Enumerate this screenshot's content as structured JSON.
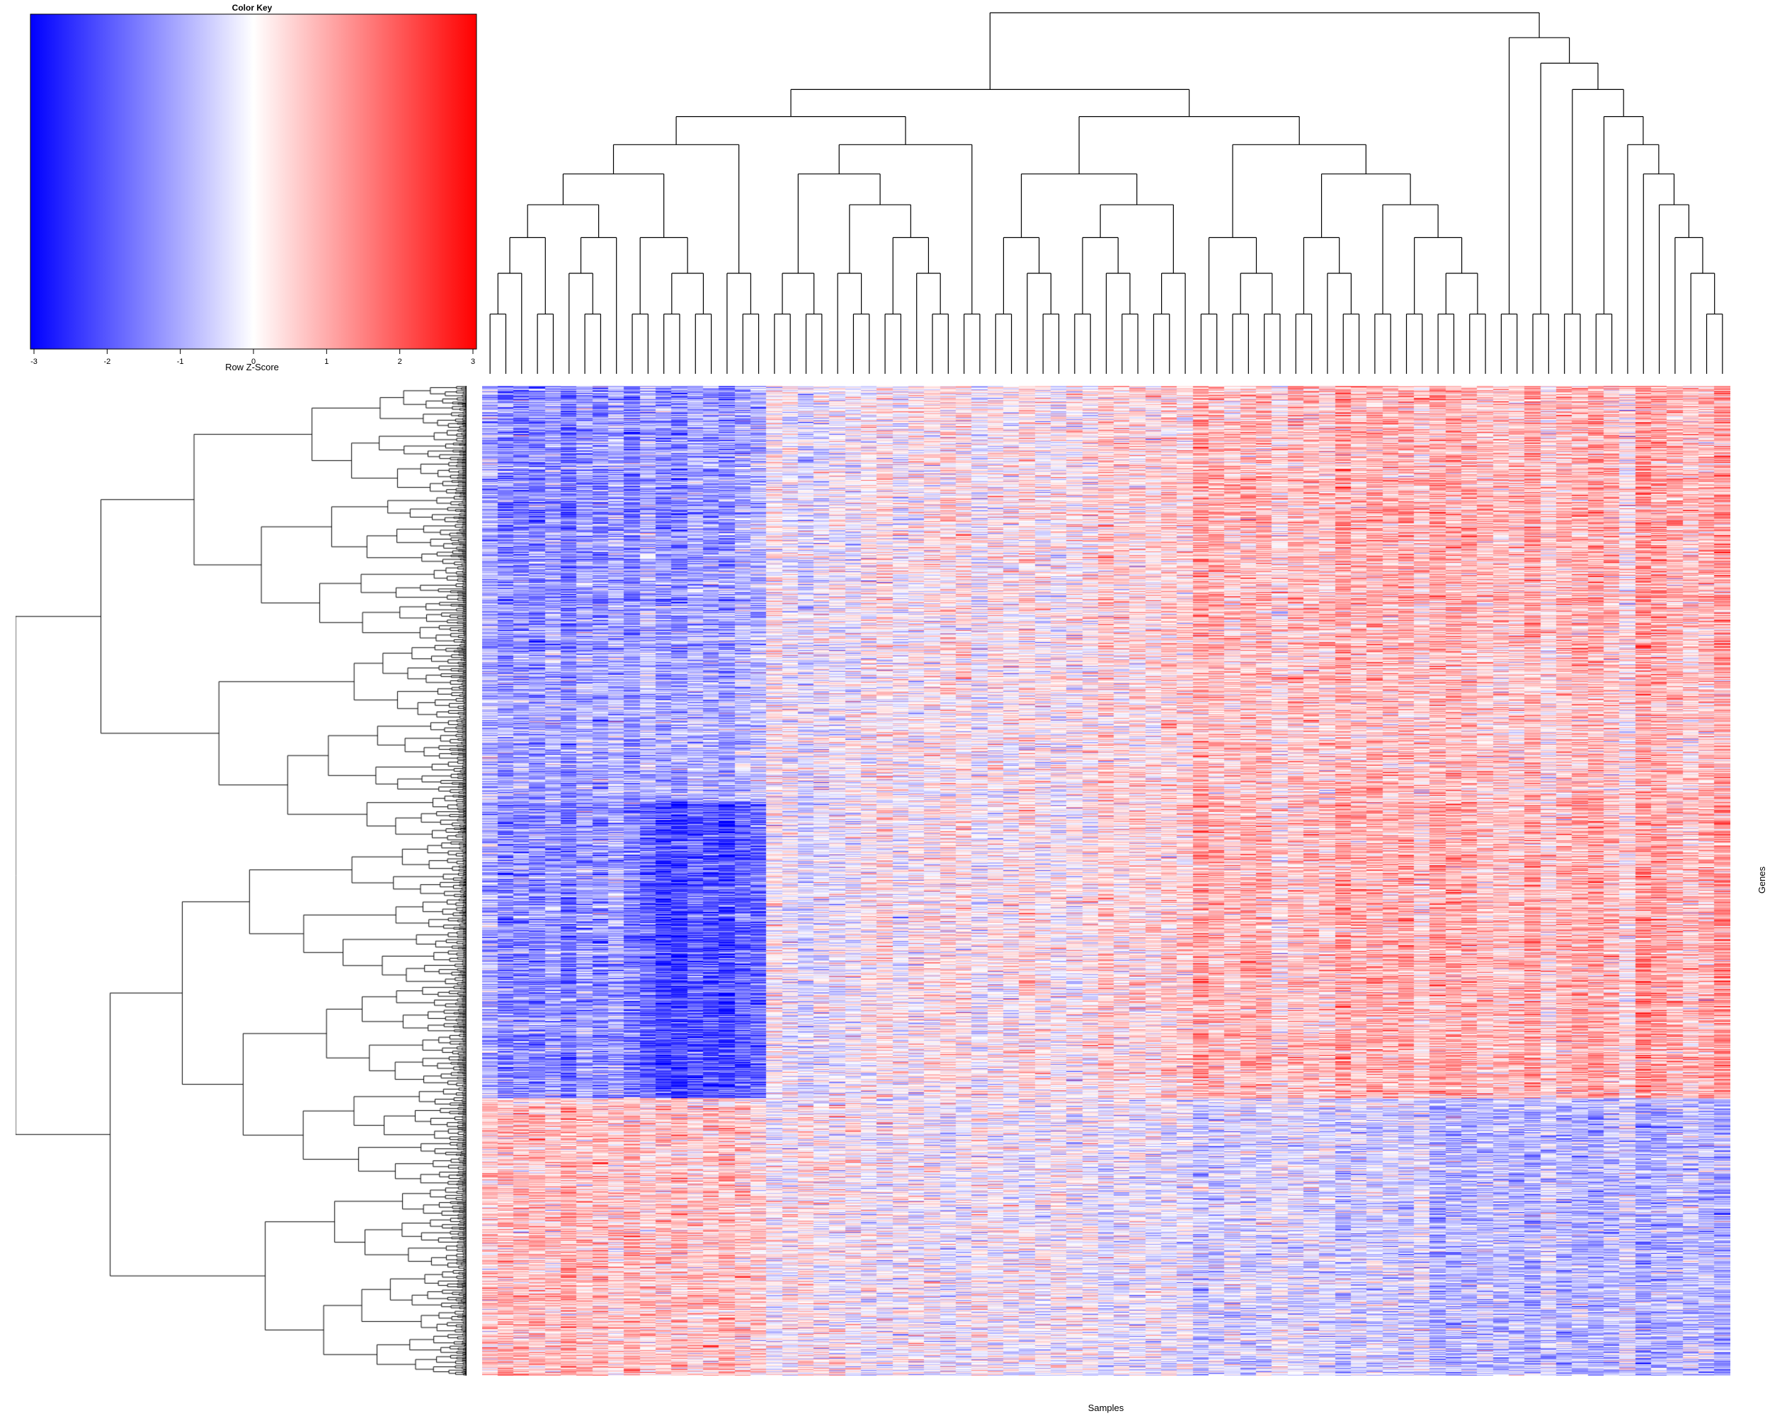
{
  "chart_data": {
    "type": "heatmap",
    "title": "",
    "xlabel": "Samples",
    "ylabel": "Genes",
    "color_key": {
      "title": "Color Key",
      "label": "Row Z-Score",
      "ticks": [
        "-3",
        "-2",
        "-1",
        "0",
        "1",
        "2",
        "3"
      ],
      "range": [
        -3,
        3
      ],
      "low_color": "#0000ff",
      "mid_color": "#ffffff",
      "high_color": "#ff0000"
    },
    "n_samples": 79,
    "n_genes": 1400,
    "sample_dendrogram": "(((((((((s1,s2),s3),(s4,s5)),((s6,(s7,s8)),s9)),((s10,s11),((s12,s13),(s14,s15)))),(s16,(s17,s18))),((((s19,s20),(s21,s22)),((s23,(s24,s25)),((s26,s27),(s28,(s29,s30))))),(s31,s32))),((((s33,s34),(s35,(s36,s37))),(((s38,s39),(s40,(s41,s42))),((s43,s44),s45))),(((s46,s47),((s48,s49),(s50,s51))),(((s52,s53),(s54,(s55,s56))),((s57,s58),((s59,s60),((s61,s62),(s63,s64)))))))),((s65,s66),((s67,s68),((s69,s70),((s71,s72),(s73,(s74,(s75,(s76,(s77,(s78,s79)))))))))))",
    "sample_group_trend": [
      {
        "samples": "1-18",
        "tendency": "low (blue), strongest in upper and middle gene blocks"
      },
      {
        "samples": "19-45",
        "tendency": "mixed / near zero"
      },
      {
        "samples": "46-79",
        "tendency": "high (red) in upper gene blocks, mixed in lower block"
      }
    ]
  }
}
